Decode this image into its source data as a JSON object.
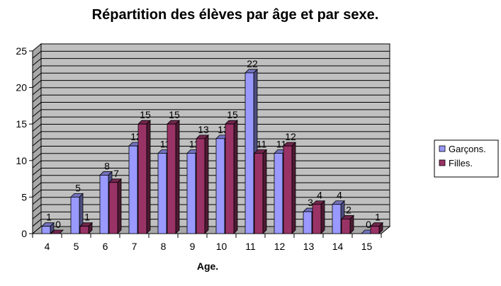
{
  "chart_data": {
    "type": "bar",
    "title": "Répartition des élèves par âge et par sexe.",
    "xlabel": "Age.",
    "ylabel": "",
    "categories": [
      "4",
      "5",
      "6",
      "7",
      "8",
      "9",
      "10",
      "11",
      "12",
      "13",
      "14",
      "15"
    ],
    "series": [
      {
        "name": "Garçons.",
        "values": [
          1,
          5,
          8,
          12,
          11,
          11,
          13,
          22,
          11,
          3,
          4,
          0
        ],
        "color": "#9999ff"
      },
      {
        "name": "Filles.",
        "values": [
          0,
          1,
          7,
          15,
          15,
          13,
          15,
          11,
          12,
          4,
          2,
          1
        ],
        "color": "#993366"
      }
    ],
    "ylim": [
      0,
      25
    ],
    "yticks": [
      0,
      5,
      10,
      15,
      20,
      25
    ],
    "grid": true,
    "legend_position": "right",
    "wall_color": "#c0c0c0"
  }
}
